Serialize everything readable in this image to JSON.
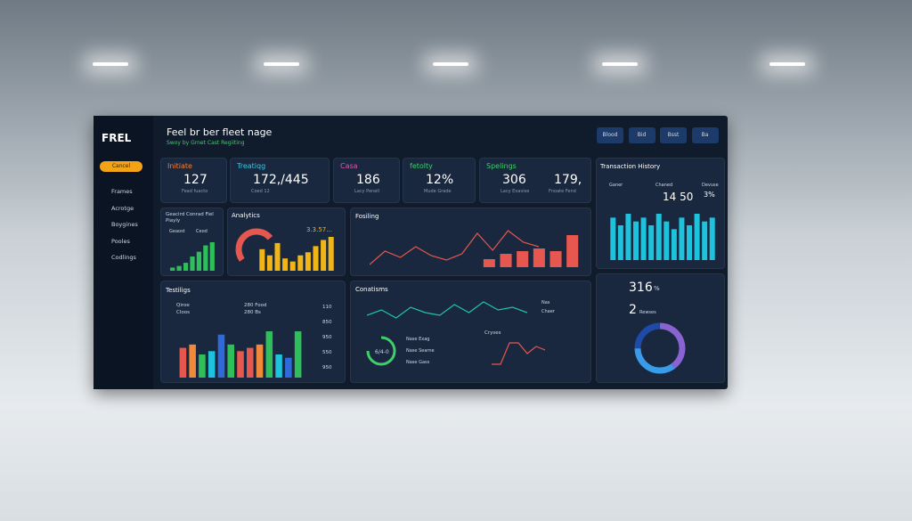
{
  "sidebar": {
    "logo": "FREL",
    "button": "Cancel",
    "menu": [
      "Frames",
      "Acrotge",
      "Boygines",
      "Pooles",
      "Codlings"
    ]
  },
  "header": {
    "title": "Feel br ber fleet nage",
    "subtitle": "Swoy by Grnet Cast Regiiting",
    "buttons": [
      "Blood",
      "Bid",
      "Bsst",
      "Ba"
    ]
  },
  "kpis": [
    {
      "label": "Initiate",
      "value": "127",
      "caption": "Fead fuacto",
      "color": "#f0803a"
    },
    {
      "label": "Treatiqg",
      "value": "172,/445",
      "caption": "Coed 12",
      "color": "#3ec6e0"
    },
    {
      "label": "Casa",
      "value": "186",
      "caption": "Lacy Penell",
      "color": "#e05aa8"
    },
    {
      "label": "fetolty",
      "value": "12%",
      "caption": "Mude Grade",
      "color": "#3ecf6a"
    },
    {
      "label": "Spelings",
      "value": "306",
      "caption": "Lacy Exavise",
      "value2": "179,",
      "caption2": "Fnoate Fend",
      "color": "#3ecf6a"
    }
  ],
  "panels": {
    "general": {
      "title": "Geacird Conrad Fiel Piayly",
      "legend": [
        "Geaost",
        "Ceod"
      ],
      "bars": [
        2,
        3,
        5,
        9,
        12,
        16,
        18
      ],
      "color": "#2fbf5a"
    },
    "analytics": {
      "title": "Analytics",
      "note": "3.3.57...",
      "gauge": 70,
      "bars": [
        14,
        10,
        18,
        8,
        6,
        10,
        12,
        16,
        20,
        22
      ],
      "color": "#f2b516"
    },
    "fosiling": {
      "title": "Fosiling",
      "line": [
        20,
        35,
        28,
        40,
        30,
        25,
        32,
        55,
        36,
        58,
        45,
        40
      ],
      "bars": [
        6,
        10,
        12,
        14,
        12,
        24
      ],
      "color": "#e5574f"
    },
    "transactions": {
      "title": "Transaction History",
      "legend": [
        "Ganer",
        "Chaned",
        "Devuse"
      ],
      "value": "14 50",
      "pct": "3%",
      "bars": [
        22,
        18,
        24,
        20,
        22,
        18,
        24,
        20,
        16,
        22,
        18,
        24,
        20,
        22
      ],
      "color": "#1ec2dc"
    },
    "testiligs": {
      "title": "Testiligs",
      "legend": [
        "Qiroe",
        "280 Food",
        "Cloos",
        "280 Bs"
      ],
      "sidelabels": [
        "110",
        "850",
        "950",
        "550",
        "950"
      ],
      "bars": [
        18,
        20,
        14,
        16,
        26,
        20,
        16,
        18,
        20,
        28,
        14,
        12,
        28
      ],
      "colors": [
        "#e5574f",
        "#f08a3a",
        "#2fbf5a",
        "#1ec2dc",
        "#2f6ad8",
        "#2fbf5a",
        "#e5574f"
      ]
    },
    "conatisms": {
      "title": "Conatisms",
      "line": [
        20,
        24,
        18,
        26,
        22,
        20,
        28,
        22,
        30,
        24,
        26,
        22
      ],
      "legend": [
        "Nas",
        "Chaer"
      ],
      "items": [
        "Nase Exag",
        "Nase Searne",
        "Nase Gass"
      ],
      "center": "6/4-0",
      "gauge": 75,
      "small_title": "Cryses",
      "small_line": [
        10,
        10,
        22,
        22,
        16,
        20,
        18
      ]
    },
    "summary": {
      "value": "316",
      "unit": "%",
      "value2": "2",
      "caption": "Rewses",
      "donut": [
        40,
        35,
        25
      ],
      "colors": [
        "#8a63d2",
        "#3a9be8",
        "#1e4aa8"
      ]
    }
  }
}
